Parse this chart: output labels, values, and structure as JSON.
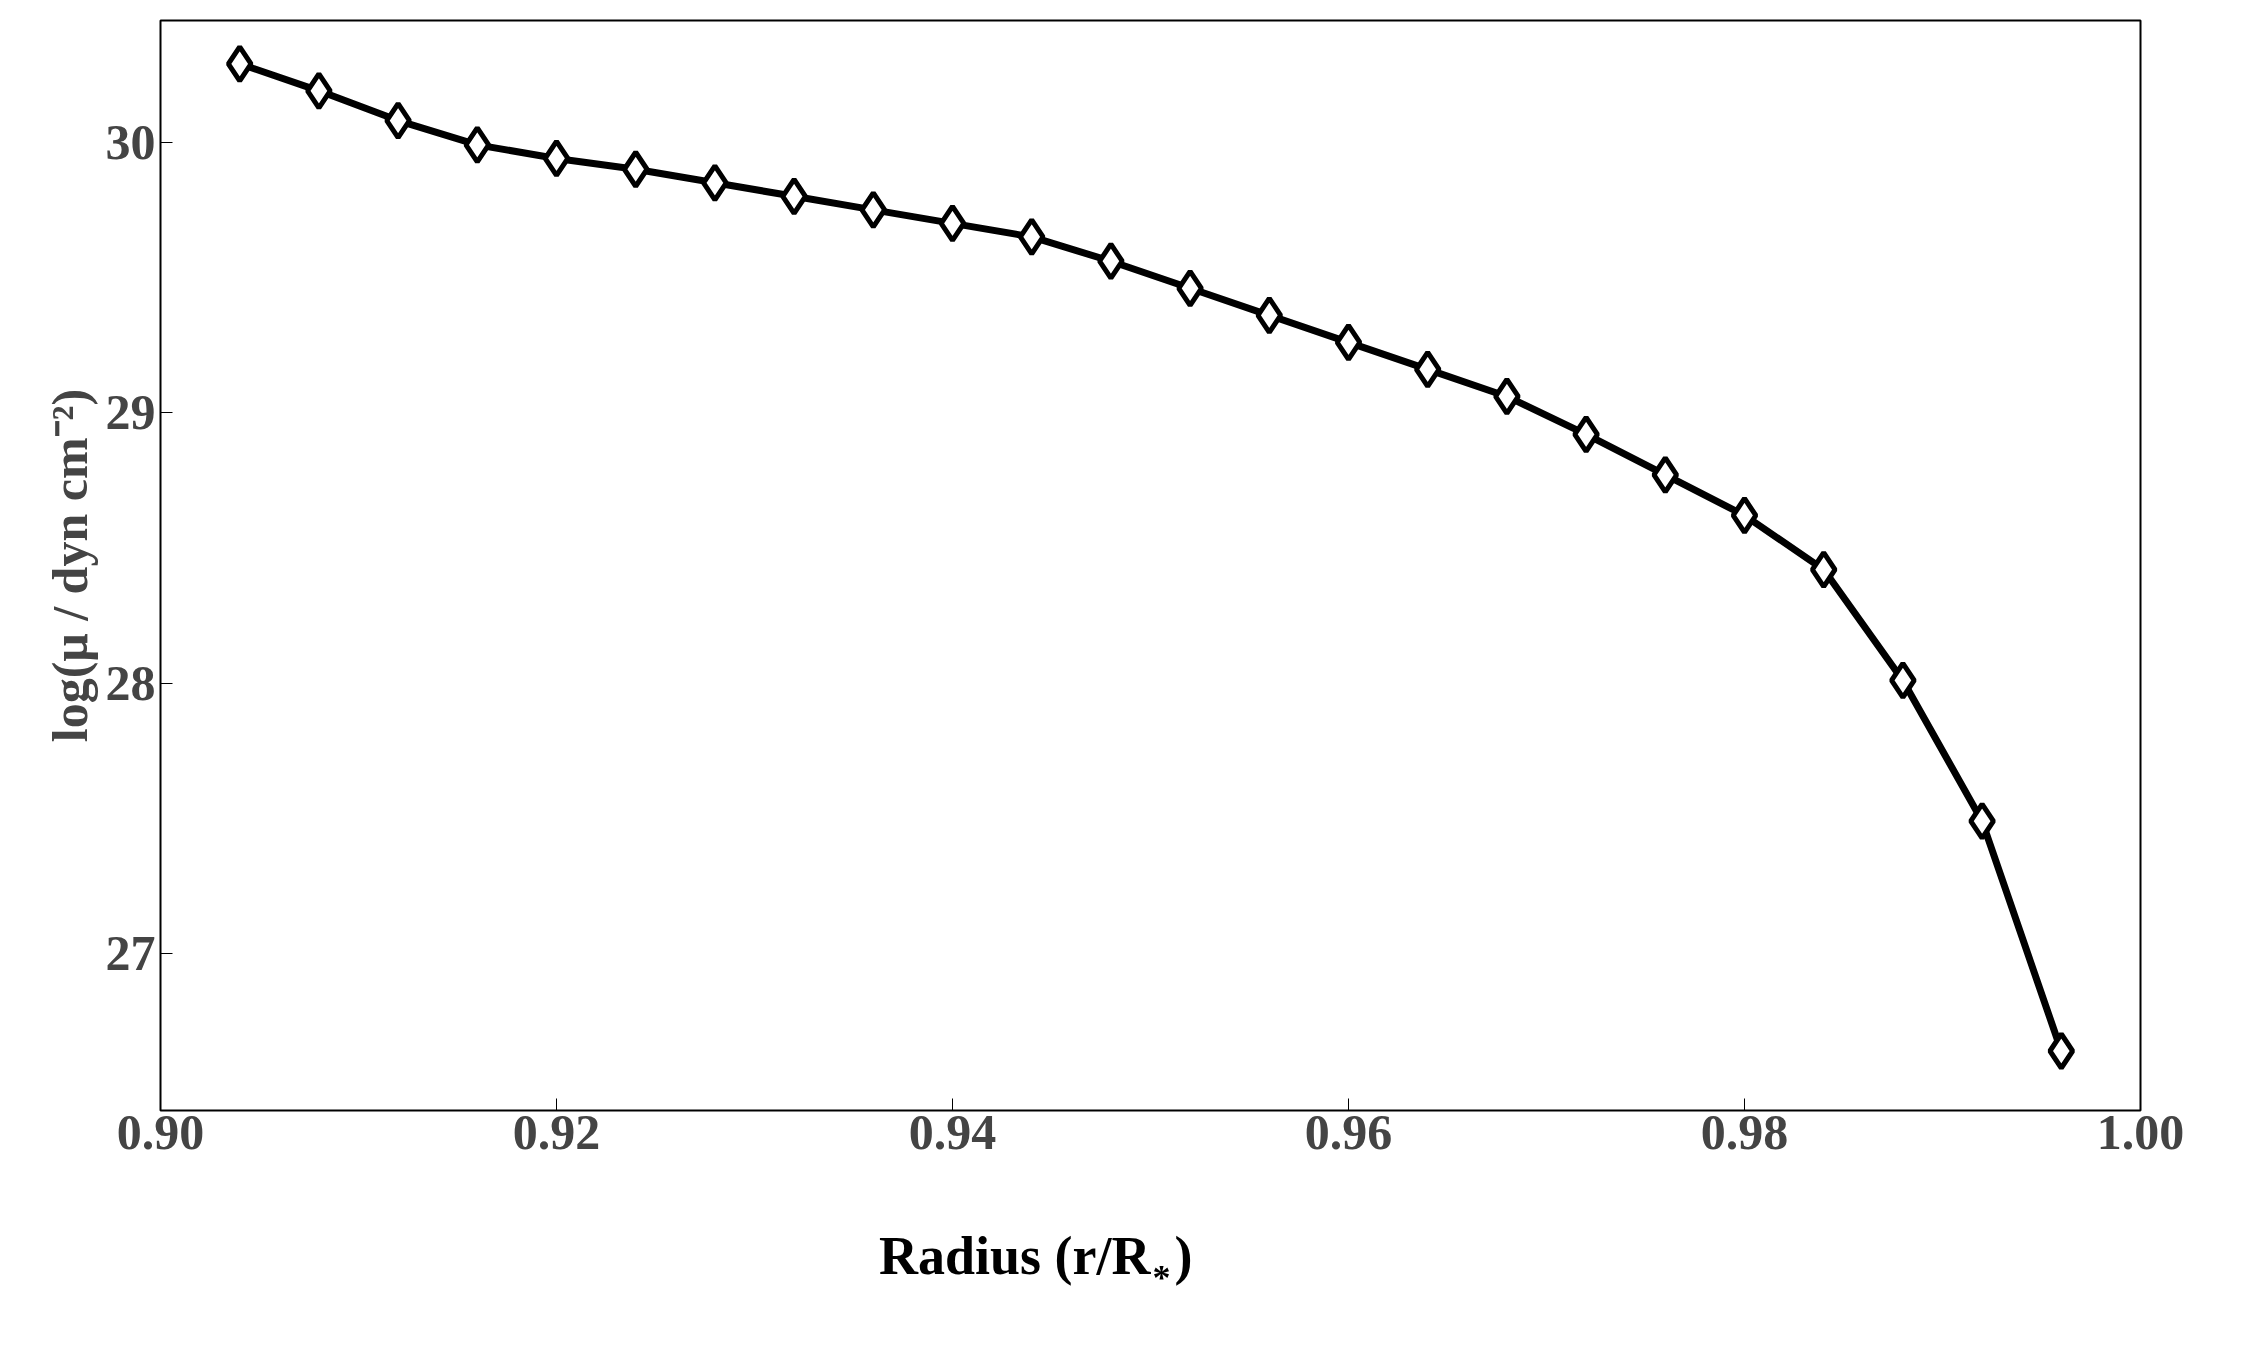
{
  "chart_data": {
    "type": "line",
    "xlabel": "Radius (r/R$_{*}$)",
    "ylabel": "log(μ / dyn cm⁻²)",
    "x": [
      0.904,
      0.908,
      0.912,
      0.916,
      0.92,
      0.924,
      0.928,
      0.932,
      0.936,
      0.94,
      0.944,
      0.948,
      0.952,
      0.956,
      0.96,
      0.964,
      0.968,
      0.972,
      0.976,
      0.98,
      0.984,
      0.988,
      0.992,
      0.996
    ],
    "series": [
      {
        "color": "#000000",
        "values": [
          30.29,
          30.19,
          30.08,
          29.99,
          29.94,
          29.9,
          29.85,
          29.8,
          29.75,
          29.7,
          29.65,
          29.56,
          29.46,
          29.36,
          29.26,
          29.16,
          29.06,
          28.92,
          28.77,
          28.62,
          28.42,
          28.01,
          27.49,
          26.64
        ]
      }
    ],
    "xlim": [
      0.9,
      1.0
    ],
    "ylim": [
      26.42,
      30.45
    ],
    "xticks": [
      {
        "value": 0.9,
        "label": "0.90"
      },
      {
        "value": 0.92,
        "label": "0.92"
      },
      {
        "value": 0.94,
        "label": "0.94"
      },
      {
        "value": 0.96,
        "label": "0.96"
      },
      {
        "value": 0.98,
        "label": "0.98"
      },
      {
        "value": 1.0,
        "label": "1.00"
      }
    ],
    "yticks": [
      27,
      28,
      29,
      30
    ],
    "grid": false,
    "marker": "diamond",
    "line_style": "solid"
  }
}
